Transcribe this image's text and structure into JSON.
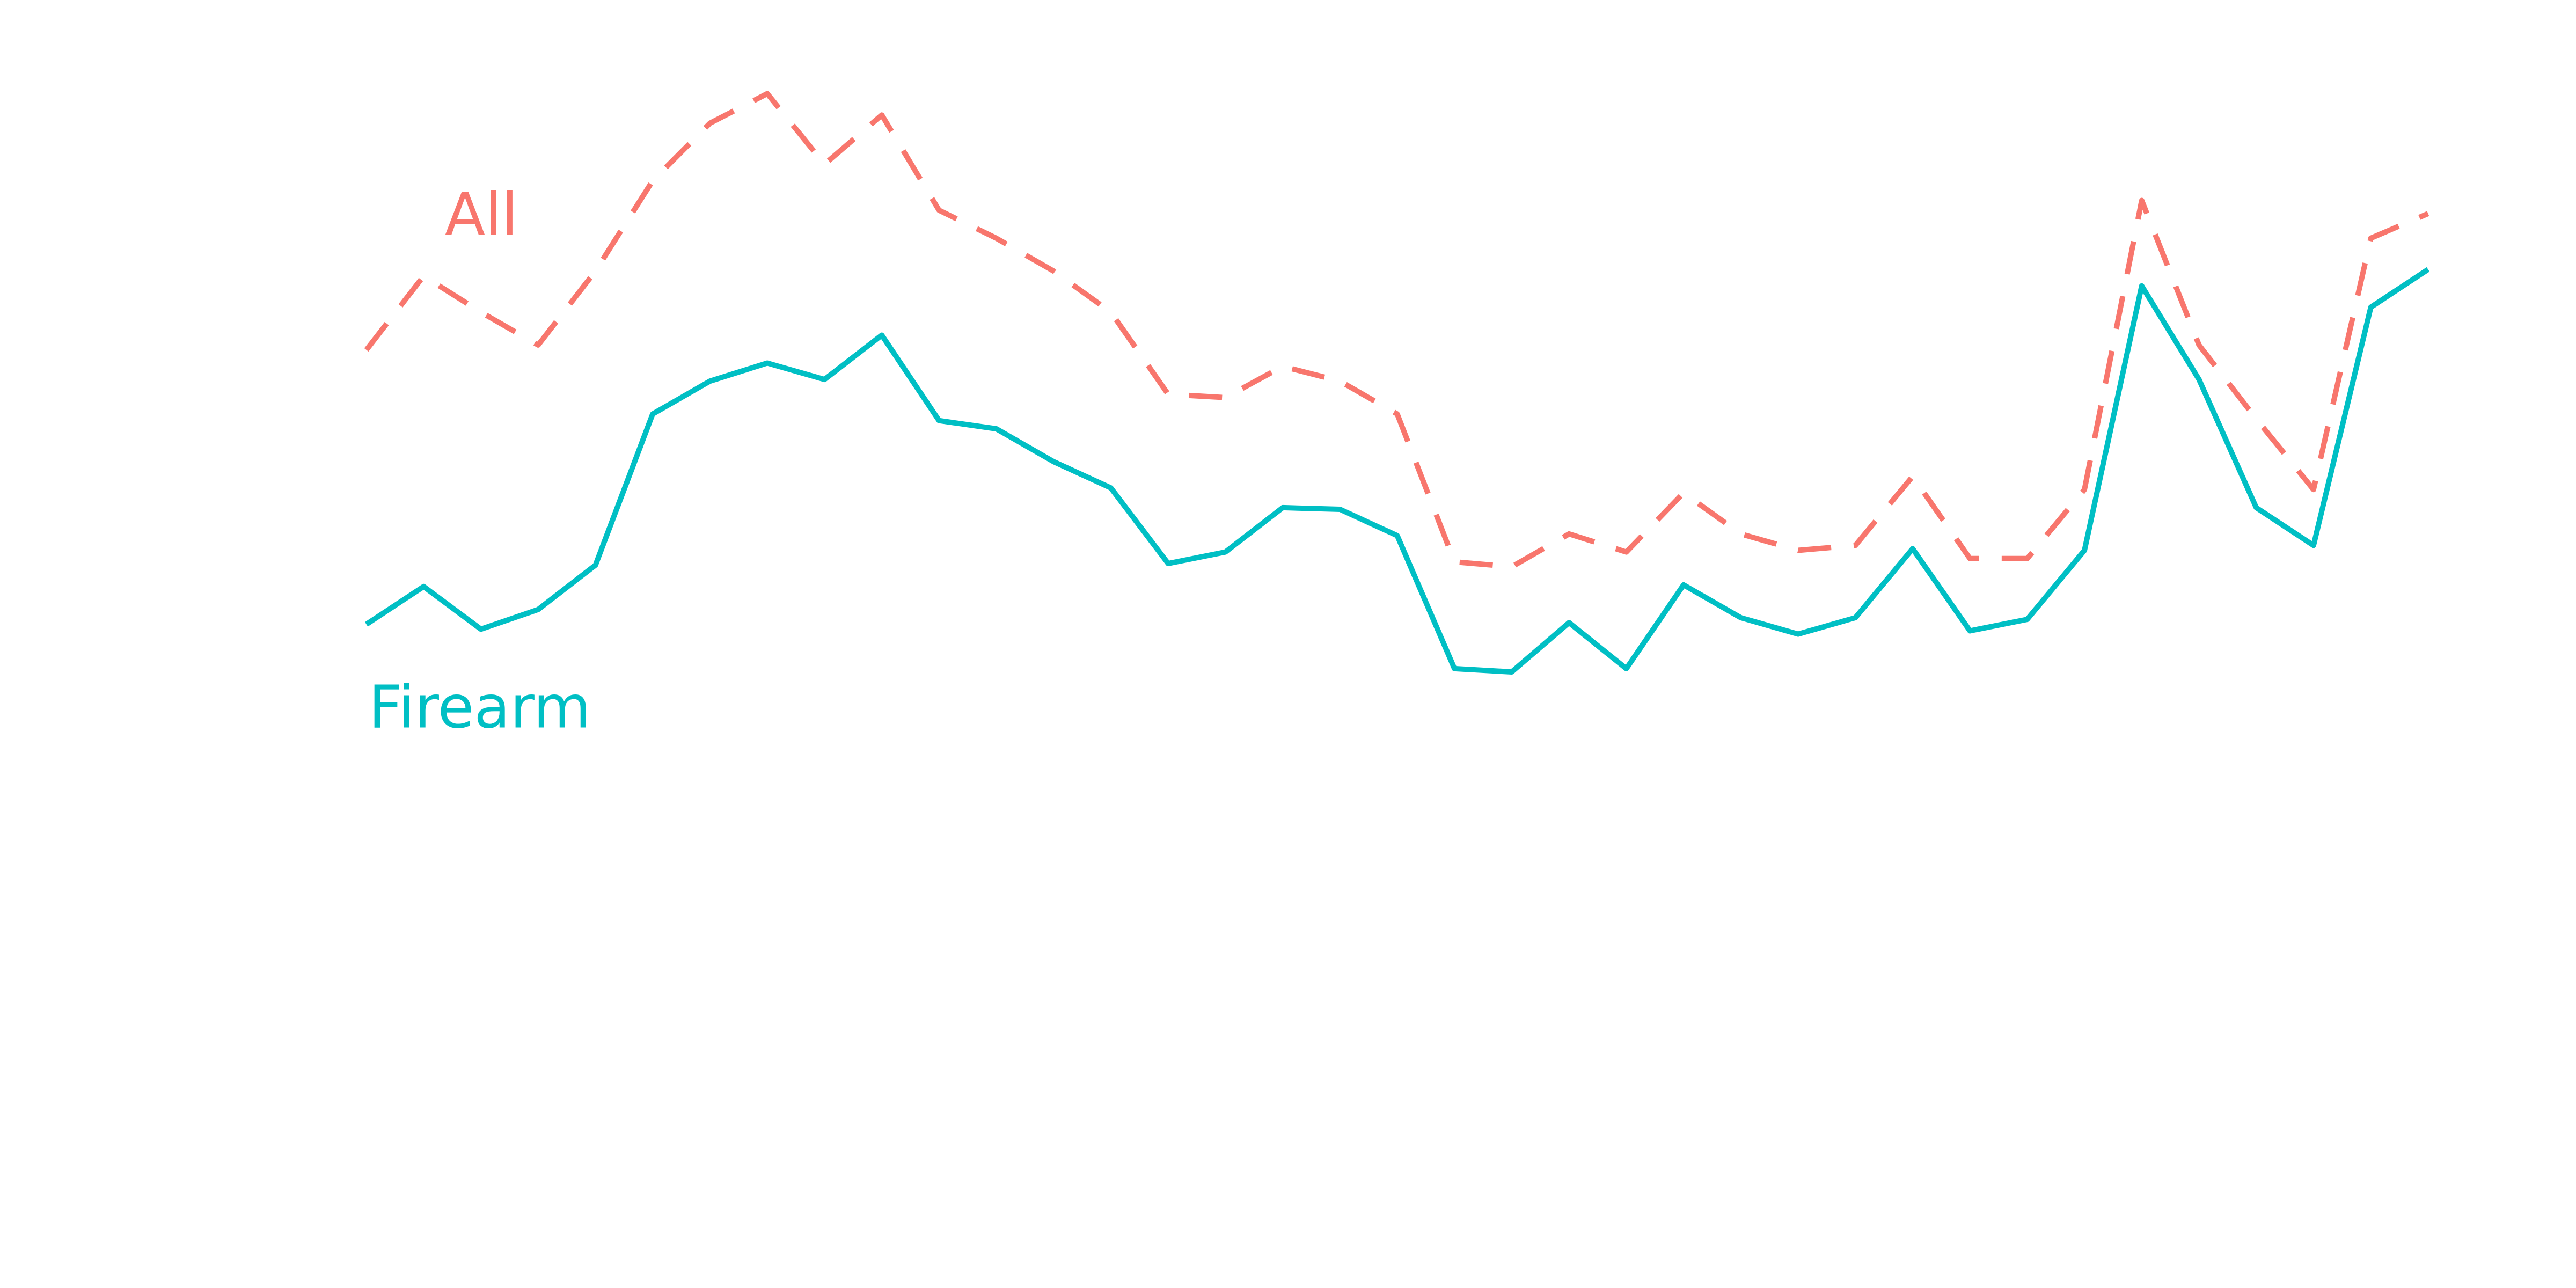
{
  "chart_data": {
    "type": "line",
    "categories": [
      null,
      null,
      null,
      null,
      null,
      null,
      null,
      null,
      null,
      null,
      null,
      null,
      null,
      null,
      null,
      null,
      null,
      null,
      null,
      null,
      null,
      null,
      null,
      null,
      null,
      null,
      null,
      null,
      null,
      null,
      null,
      null,
      null,
      null,
      null,
      null,
      null
    ],
    "ylim": [
      0,
      784
    ],
    "series": [
      {
        "name": "All",
        "color": "#f8766d",
        "dashed": true,
        "values": [
          571,
          616,
          594,
          574,
          619,
          674,
          709,
          727,
          684,
          714,
          656,
          639,
          619,
          594,
          544,
          542,
          561,
          552,
          532,
          442,
          439,
          459,
          448,
          484,
          459,
          449,
          452,
          494,
          444,
          444,
          486,
          662,
          574,
          529,
          486,
          639,
          654
        ]
      },
      {
        "name": "Firearm",
        "color": "#00bfc4",
        "dashed": false,
        "values": [
          404,
          427,
          401,
          413,
          440,
          532,
          552,
          563,
          553,
          580,
          528,
          523,
          503,
          487,
          441,
          448,
          475,
          474,
          458,
          377,
          375,
          405,
          377,
          428,
          408,
          398,
          408,
          450,
          400,
          407,
          449,
          610,
          553,
          475,
          452,
          597,
          620
        ]
      }
    ]
  }
}
